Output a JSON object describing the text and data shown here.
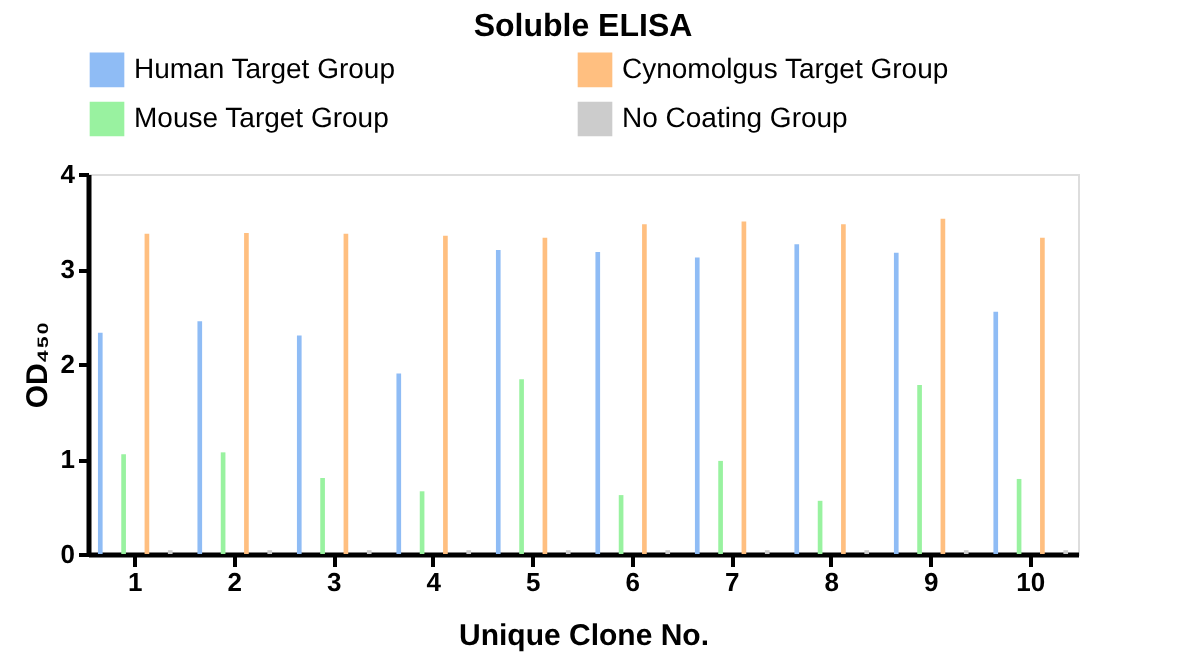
{
  "chart_data": {
    "type": "bar",
    "title": "Soluble ELISA",
    "xlabel": "Unique Clone No.",
    "ylabel": "OD₄₅₀",
    "categories": [
      "1",
      "2",
      "3",
      "4",
      "5",
      "6",
      "7",
      "8",
      "9",
      "10"
    ],
    "series": [
      {
        "name": "Human Target Group",
        "color": "#8fbcf5",
        "values": [
          2.33,
          2.45,
          2.3,
          1.9,
          3.2,
          3.18,
          3.12,
          3.26,
          3.17,
          2.55
        ]
      },
      {
        "name": "Mouse Target Group",
        "color": "#99f2a0",
        "values": [
          1.05,
          1.07,
          0.8,
          0.66,
          1.84,
          0.62,
          0.98,
          0.56,
          1.78,
          0.79
        ]
      },
      {
        "name": "Cynomolgus Target Group",
        "color": "#ffbf80",
        "values": [
          3.37,
          3.38,
          3.37,
          3.35,
          3.33,
          3.47,
          3.5,
          3.47,
          3.53,
          3.33
        ]
      },
      {
        "name": "No Coating Group",
        "color": "#cccccc",
        "values": [
          0.04,
          0.04,
          0.04,
          0.04,
          0.04,
          0.04,
          0.04,
          0.04,
          0.04,
          0.04
        ]
      }
    ],
    "ylim": [
      0,
      4
    ],
    "yticks": [
      0,
      1,
      2,
      3,
      4
    ],
    "grid": false,
    "legend": "top"
  }
}
